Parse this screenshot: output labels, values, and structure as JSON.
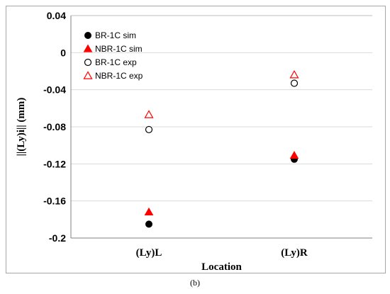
{
  "chart_data": {
    "type": "scatter",
    "xlabel": "Location",
    "ylabel": "||(Ly)i|| (mm)",
    "categories": [
      "(Ly)L",
      "(Ly)R"
    ],
    "ylim": [
      -0.2,
      0.04
    ],
    "yticks": [
      0.04,
      0,
      -0.04,
      -0.08,
      -0.12,
      -0.16,
      -0.2
    ],
    "ytick_labels": [
      "0.04",
      "0",
      "-0.04",
      "-0.08",
      "-0.12",
      "-0.16",
      "-0.2"
    ],
    "grid": "horizontal",
    "legend_position": "top-left",
    "series": [
      {
        "name": "BR-1C sim",
        "marker": "circle-filled",
        "color": "#000000",
        "values": [
          -0.185,
          -0.115
        ]
      },
      {
        "name": "NBR-1C sim",
        "marker": "triangle-filled",
        "color": "#ff0000",
        "values": [
          -0.172,
          -0.111
        ]
      },
      {
        "name": "BR-1C exp",
        "marker": "circle-open",
        "color": "#000000",
        "values": [
          -0.083,
          -0.033
        ]
      },
      {
        "name": "NBR-1C exp",
        "marker": "triangle-open",
        "color": "#ff0000",
        "values": [
          -0.067,
          -0.024
        ]
      }
    ]
  },
  "caption": "(b)"
}
